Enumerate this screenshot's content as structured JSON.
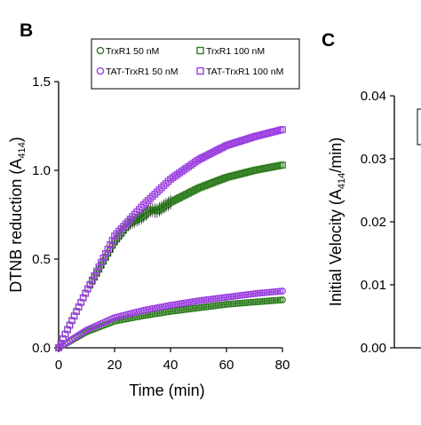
{
  "chart_data": [
    {
      "type": "scatter",
      "panel_label": "B",
      "xlabel": "Time (min)",
      "ylabel_main": "DTNB reduction (A",
      "ylabel_sub": "414",
      "ylabel_end": ")",
      "xlim": [
        0,
        80
      ],
      "ylim": [
        0,
        1.5
      ],
      "xticks": [
        "0",
        "20",
        "40",
        "60",
        "80"
      ],
      "yticks": [
        "0.0",
        "0.5",
        "1.0",
        "1.5"
      ],
      "grid": false,
      "legend_position": "top",
      "series": [
        {
          "name": "TrxR1 50 nM",
          "marker": "circle",
          "color": "#2e7d1e",
          "x": [
            0,
            10,
            20,
            30,
            40,
            50,
            60,
            70,
            80
          ],
          "y": [
            0.0,
            0.09,
            0.15,
            0.18,
            0.205,
            0.225,
            0.245,
            0.258,
            0.27
          ]
        },
        {
          "name": "TrxR1 100 nM",
          "marker": "square",
          "color": "#2e7d1e",
          "x": [
            0,
            10,
            20,
            25,
            30,
            33,
            35,
            40,
            50,
            60,
            70,
            80
          ],
          "y": [
            0.0,
            0.32,
            0.6,
            0.7,
            0.74,
            0.78,
            0.77,
            0.82,
            0.9,
            0.96,
            1.0,
            1.03
          ]
        },
        {
          "name": "TAT-TrxR1 50 nM",
          "marker": "circle",
          "color": "#9b3fe0",
          "x": [
            0,
            10,
            20,
            30,
            40,
            50,
            60,
            70,
            80
          ],
          "y": [
            0.0,
            0.1,
            0.17,
            0.21,
            0.24,
            0.265,
            0.285,
            0.305,
            0.32
          ]
        },
        {
          "name": "TAT-TrxR1 100 nM",
          "marker": "square",
          "color": "#9b3fe0",
          "x": [
            0,
            10,
            20,
            30,
            40,
            50,
            60,
            70,
            80
          ],
          "y": [
            0.0,
            0.32,
            0.63,
            0.8,
            0.95,
            1.06,
            1.14,
            1.19,
            1.23
          ]
        }
      ]
    },
    {
      "type": "bar",
      "panel_label": "C",
      "ylabel_main": "Initial Velocity (A",
      "ylabel_sub": "414",
      "ylabel_end": "/min)",
      "ylim": [
        0,
        0.04
      ],
      "yticks": [
        "0.00",
        "0.01",
        "0.02",
        "0.03",
        "0.04"
      ],
      "values": []
    }
  ]
}
